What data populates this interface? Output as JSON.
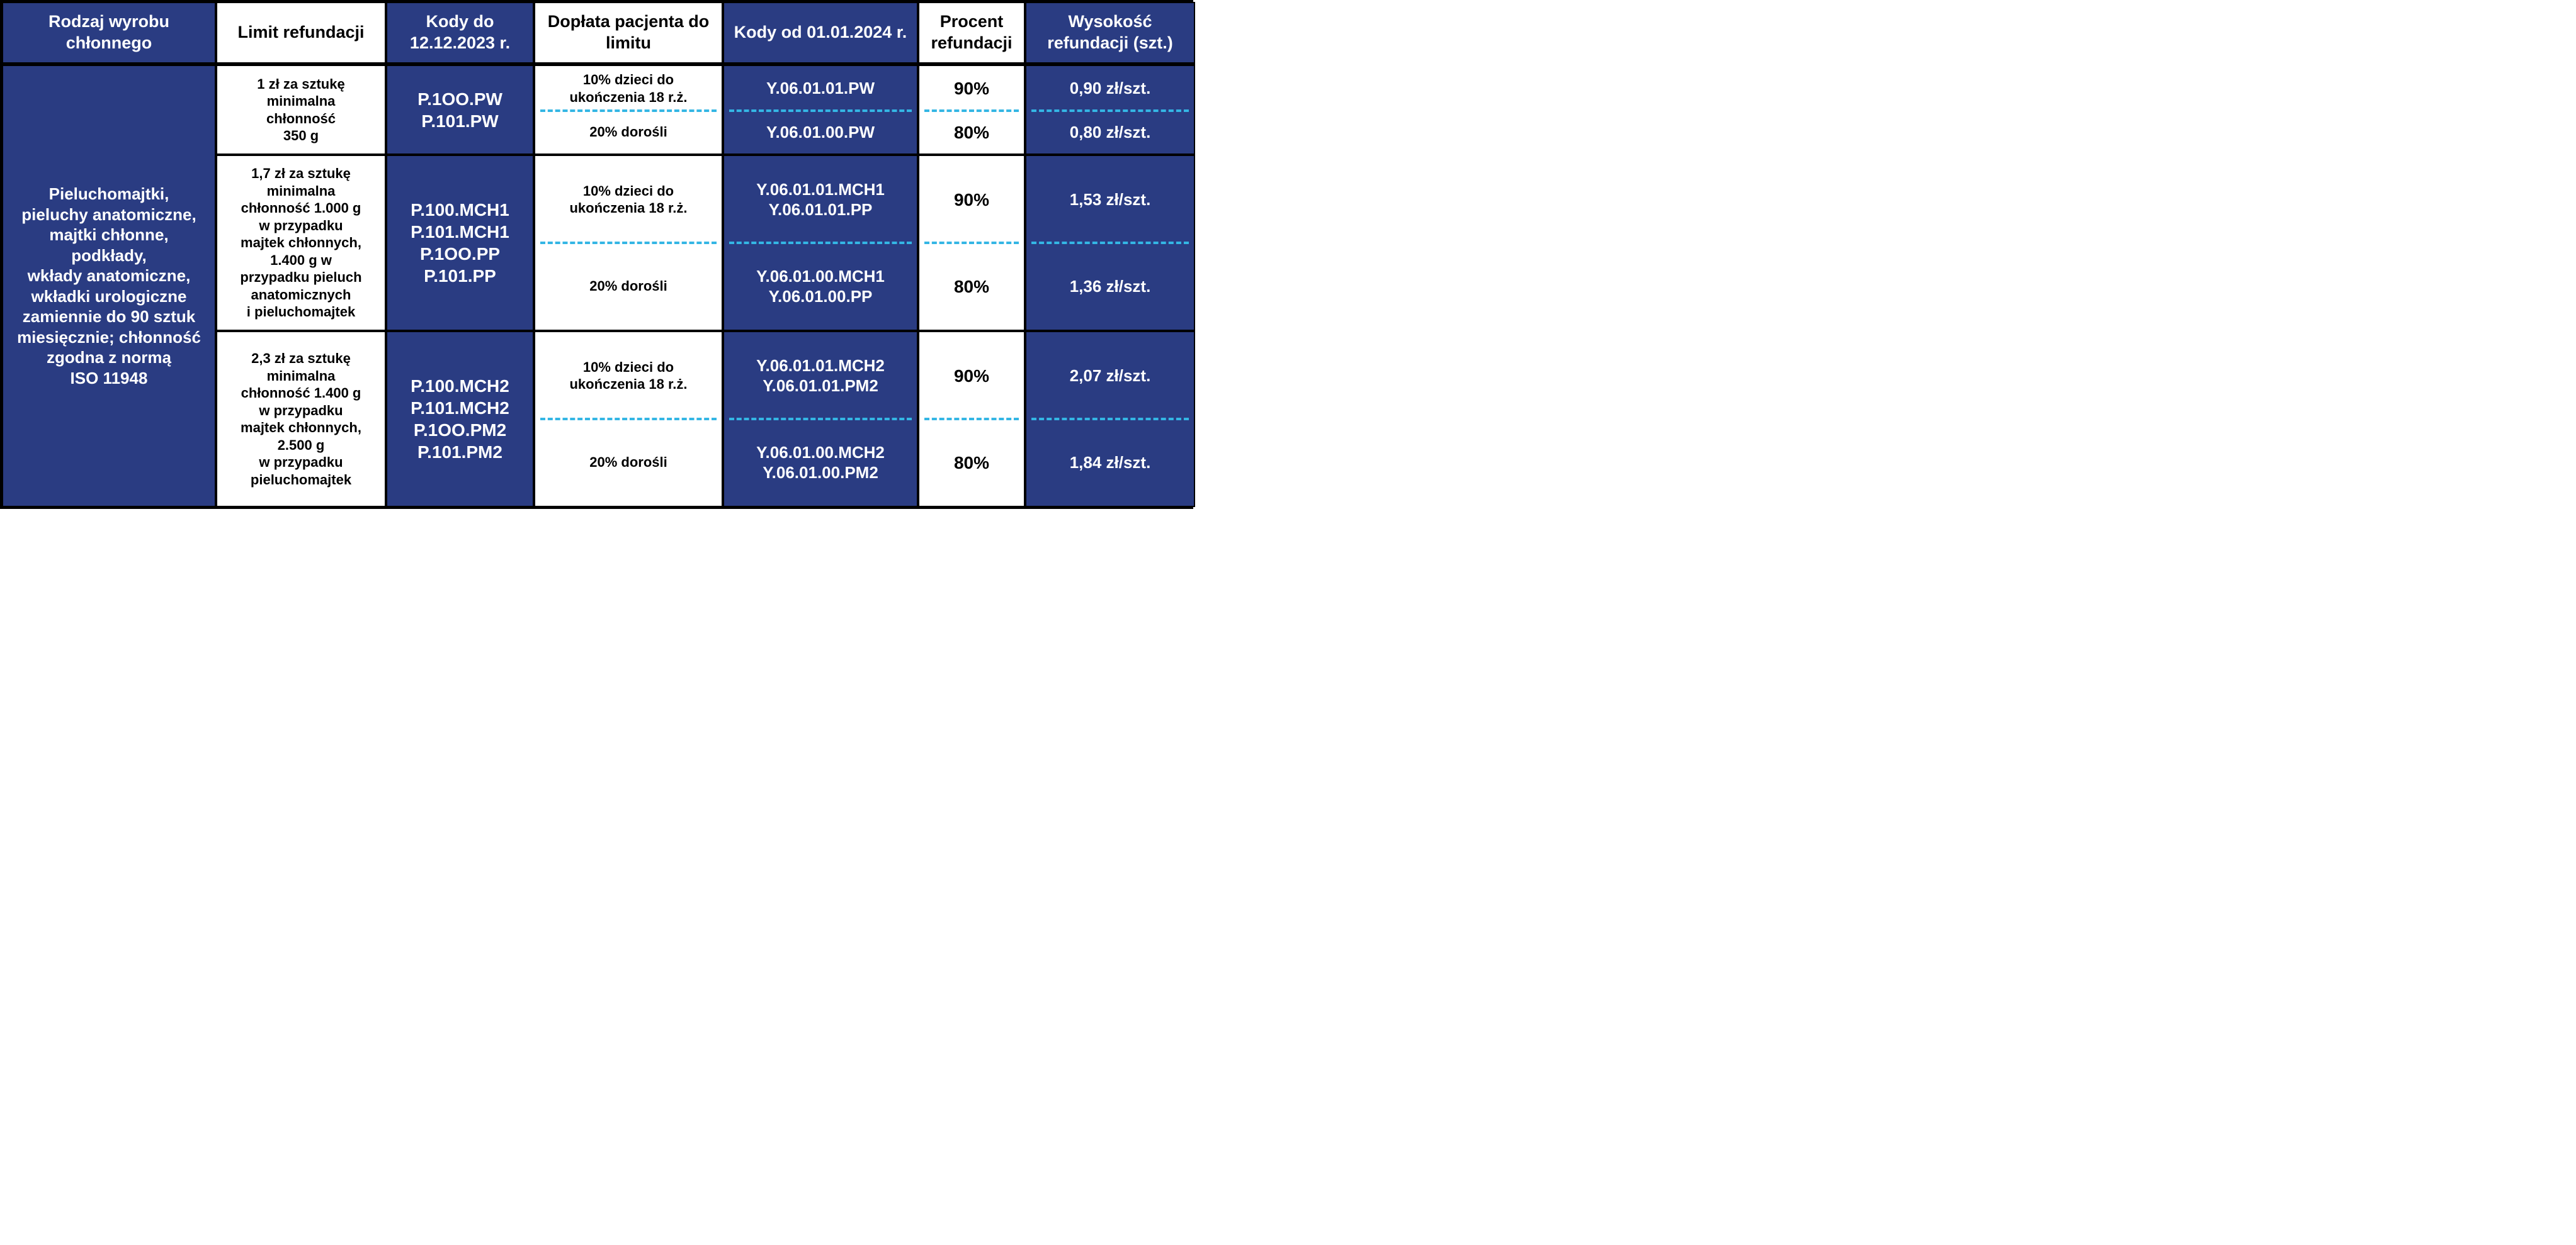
{
  "headers": {
    "c1": "Rodzaj wyrobu chłonnego",
    "c2": "Limit refundacji",
    "c3": "Kody do 12.12.2023 r.",
    "c4": "Dopłata pacjenta do limitu",
    "c5": "Kody od 01.01.2024 r.",
    "c6": "Procent refundacji",
    "c7": "Wysokość refundacji (szt.)"
  },
  "product": "Pieluchomajtki,\npieluchy anatomiczne,\nmajtki chłonne,\npodkłady,\nwkłady anatomiczne,\nwkładki urologiczne\nzamiennie do 90 sztuk\nmiesięcznie; chłonność\nzgodna z normą\nISO 11948",
  "g1": {
    "limit": "1 zł za sztukę\nminimalna\nchłonność\n350 g",
    "codes_old": "P.1OO.PW\nP.101.PW",
    "r1": {
      "copay": "10% dzieci do\nukończenia 18 r.ż.",
      "codes_new": "Y.06.01.01.PW",
      "pct": "90%",
      "amt": "0,90 zł/szt."
    },
    "r2": {
      "copay": "20% dorośli",
      "codes_new": "Y.06.01.00.PW",
      "pct": "80%",
      "amt": "0,80 zł/szt."
    }
  },
  "g2": {
    "limit": "1,7 zł za sztukę\nminimalna\nchłonność 1.000 g\nw przypadku\nmajtek chłonnych,\n1.400 g w\nprzypadku pieluch\nanatomicznych\ni pieluchomajtek",
    "codes_old": "P.100.MCH1\nP.101.MCH1\nP.1OO.PP\nP.101.PP",
    "r1": {
      "copay": "10% dzieci do\nukończenia 18 r.ż.",
      "codes_new": "Y.06.01.01.MCH1\nY.06.01.01.PP",
      "pct": "90%",
      "amt": "1,53 zł/szt."
    },
    "r2": {
      "copay": "20% dorośli",
      "codes_new": "Y.06.01.00.MCH1\nY.06.01.00.PP",
      "pct": "80%",
      "amt": "1,36 zł/szt."
    }
  },
  "g3": {
    "limit": "2,3 zł za sztukę\nminimalna\nchłonność 1.400 g\nw przypadku\nmajtek chłonnych,\n2.500 g\nw przypadku\npieluchomajtek",
    "codes_old": "P.100.MCH2\nP.101.MCH2\nP.1OO.PM2\nP.101.PM2",
    "r1": {
      "copay": "10% dzieci do\nukończenia 18 r.ż.",
      "codes_new": "Y.06.01.01.MCH2\nY.06.01.01.PM2",
      "pct": "90%",
      "amt": "2,07 zł/szt."
    },
    "r2": {
      "copay": "20% dorośli",
      "codes_new": "Y.06.01.00.MCH2\nY.06.01.00.PM2",
      "pct": "80%",
      "amt": "1,84 zł/szt."
    }
  },
  "style": {
    "blue": "#2a3c82",
    "dash": "#34b6e4",
    "border": "#000000",
    "text_light": "#ffffff",
    "text_dark": "#000000",
    "header_fontsize": 27,
    "body_fontsize": 24,
    "large_fontsize": 28
  }
}
